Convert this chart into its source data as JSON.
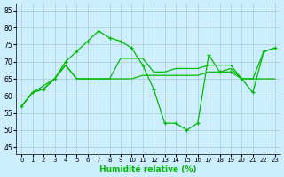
{
  "xlabel": "Humidité relative (%)",
  "xlim": [
    -0.5,
    23.5
  ],
  "ylim": [
    43,
    87
  ],
  "yticks": [
    45,
    50,
    55,
    60,
    65,
    70,
    75,
    80,
    85
  ],
  "xticks": [
    0,
    1,
    2,
    3,
    4,
    5,
    6,
    7,
    8,
    9,
    10,
    11,
    12,
    13,
    14,
    15,
    16,
    17,
    18,
    19,
    20,
    21,
    22,
    23
  ],
  "background_color": "#cceeff",
  "grid_color": "#aacccc",
  "line_color": "#00bb00",
  "line1_y": [
    57,
    61,
    62,
    65,
    70,
    73,
    76,
    79,
    77,
    76,
    74,
    69,
    62,
    52,
    52,
    50,
    52,
    72,
    67,
    67,
    65,
    61,
    73,
    74
  ],
  "line2_y": [
    57,
    61,
    62,
    65,
    69,
    65,
    65,
    65,
    65,
    65,
    65,
    66,
    66,
    66,
    66,
    66,
    66,
    67,
    67,
    68,
    65,
    65,
    65,
    65
  ],
  "line3_y": [
    57,
    61,
    63,
    65,
    69,
    65,
    65,
    65,
    65,
    71,
    71,
    71,
    67,
    67,
    68,
    68,
    68,
    69,
    69,
    69,
    65,
    65,
    73,
    74
  ]
}
